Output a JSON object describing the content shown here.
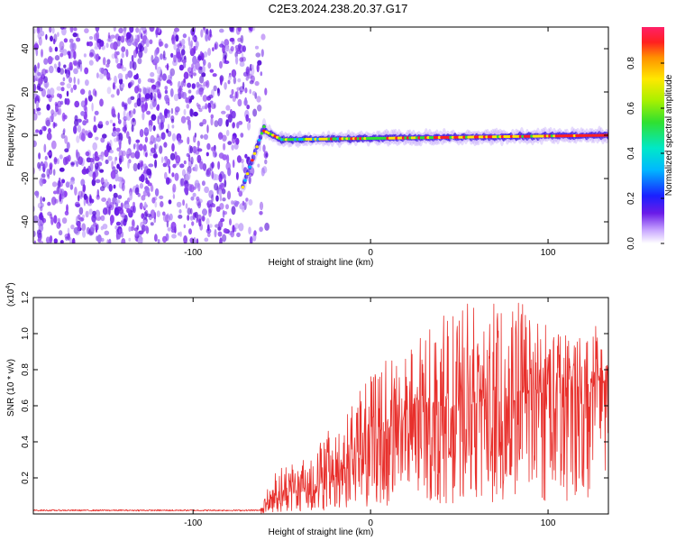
{
  "title": "C2E3.2024.238.20.37.G17",
  "chart_data": [
    {
      "type": "heatmap",
      "xlabel": "Height of straight line (km)",
      "ylabel": "Frequency (Hz)",
      "xlim": [
        -190,
        134
      ],
      "ylim": [
        -50,
        50
      ],
      "xticks": [
        -100,
        0,
        100
      ],
      "yticks": [
        -40,
        -20,
        0,
        20,
        40
      ],
      "noise_region_x": [
        -190,
        -58
      ],
      "tone_segments": [
        {
          "x0": -72,
          "y0": -24,
          "x1": -60,
          "y1": 4
        },
        {
          "x0": -60,
          "y0": 2,
          "x1": -50,
          "y1": -2
        },
        {
          "x0": -50,
          "y0": -2,
          "x1": 134,
          "y1": 0
        }
      ],
      "colorbar": {
        "label": "Normalized spectral amplitude",
        "range": [
          0.0,
          0.96
        ],
        "ticks": [
          "0.0",
          "0.2",
          "0.4",
          "0.6",
          "0.8"
        ],
        "colormap": "rainbow",
        "low_color": "#ffffff",
        "high_color": "#ff2060"
      }
    },
    {
      "type": "line",
      "xlabel": "Height of straight line (km)",
      "ylabel": "SNR (10 * v/v)",
      "y_multiplier": "(x10",
      "y_multiplier_exp": "4",
      "y_multiplier_close": ")",
      "xlim": [
        -190,
        134
      ],
      "ylim": [
        0.0,
        1.2
      ],
      "xticks": [
        -100,
        0,
        100
      ],
      "yticks": [
        "0.2",
        "0.4",
        "0.6",
        "0.8",
        "1.0",
        "1.2"
      ],
      "color": "#e8302c",
      "envelope": {
        "x": [
          -190,
          -62,
          -55,
          -45,
          -35,
          -25,
          -15,
          -5,
          5,
          15,
          25,
          35,
          45,
          55,
          65,
          75,
          85,
          95,
          105,
          115,
          125,
          134
        ],
        "mean": [
          0.02,
          0.02,
          0.1,
          0.15,
          0.14,
          0.18,
          0.25,
          0.35,
          0.45,
          0.5,
          0.55,
          0.58,
          0.6,
          0.62,
          0.63,
          0.64,
          0.66,
          0.67,
          0.66,
          0.7,
          0.72,
          0.74
        ],
        "peak": [
          0.03,
          0.03,
          0.24,
          0.3,
          0.33,
          0.45,
          0.55,
          0.7,
          0.85,
          0.9,
          0.95,
          1.05,
          1.15,
          1.2,
          1.15,
          1.2,
          1.18,
          1.1,
          1.05,
          1.0,
          1.1,
          1.05
        ]
      }
    }
  ]
}
